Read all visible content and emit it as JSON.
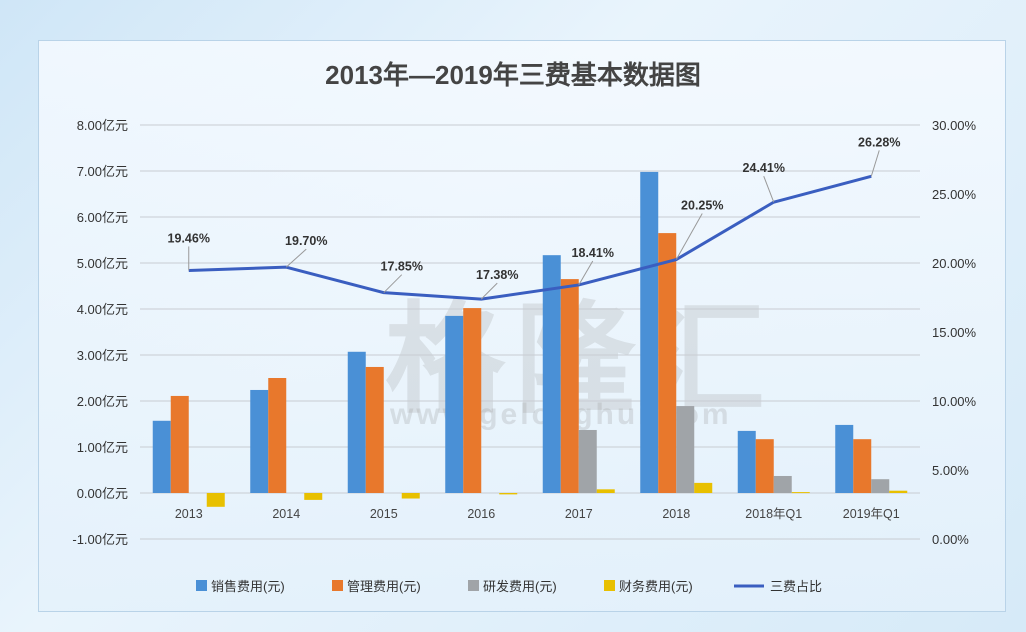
{
  "chart_data": {
    "type": "bar",
    "title": "2013年—2019年三费基本数据图",
    "watermark": "格隆汇",
    "watermark_url": "www.gelonghui.com",
    "categories": [
      "2013",
      "2014",
      "2015",
      "2016",
      "2017",
      "2018",
      "2018年Q1",
      "2019年Q1"
    ],
    "left_axis": {
      "unit": "亿元",
      "ylim": [
        -1,
        8
      ],
      "ticks": [
        "-1.00亿元",
        "0.00亿元",
        "1.00亿元",
        "2.00亿元",
        "3.00亿元",
        "4.00亿元",
        "5.00亿元",
        "6.00亿元",
        "7.00亿元",
        "8.00亿元"
      ]
    },
    "right_axis": {
      "ylim": [
        0,
        30
      ],
      "ticks": [
        "0.00%",
        "5.00%",
        "10.00%",
        "15.00%",
        "20.00%",
        "25.00%",
        "30.00%"
      ]
    },
    "series": [
      {
        "name": "销售费用(元)",
        "type": "bar",
        "color": "#4a90d6",
        "values": [
          1.57,
          2.24,
          3.07,
          3.85,
          5.17,
          6.98,
          1.35,
          1.48
        ]
      },
      {
        "name": "管理费用(元)",
        "type": "bar",
        "color": "#e8782c",
        "values": [
          2.11,
          2.5,
          2.74,
          4.02,
          4.65,
          5.65,
          1.17,
          1.17
        ]
      },
      {
        "name": "研发费用(元)",
        "type": "bar",
        "color": "#a0a4a8",
        "values": [
          0,
          0,
          0,
          0,
          1.37,
          1.89,
          0.37,
          0.3
        ]
      },
      {
        "name": "财务费用(元)",
        "type": "bar",
        "color": "#e8c000",
        "values": [
          -0.3,
          -0.15,
          -0.12,
          -0.03,
          0.08,
          0.22,
          0.02,
          0.05
        ]
      },
      {
        "name": "三费占比",
        "type": "line",
        "axis": "right",
        "color": "#3a5ec0",
        "values": [
          19.46,
          19.7,
          17.85,
          17.38,
          18.41,
          20.25,
          24.41,
          26.28
        ],
        "labels": [
          "19.46%",
          "19.70%",
          "17.85%",
          "17.38%",
          "18.41%",
          "20.25%",
          "24.41%",
          "26.28%"
        ]
      }
    ],
    "grid": true,
    "legend": "bottom"
  }
}
